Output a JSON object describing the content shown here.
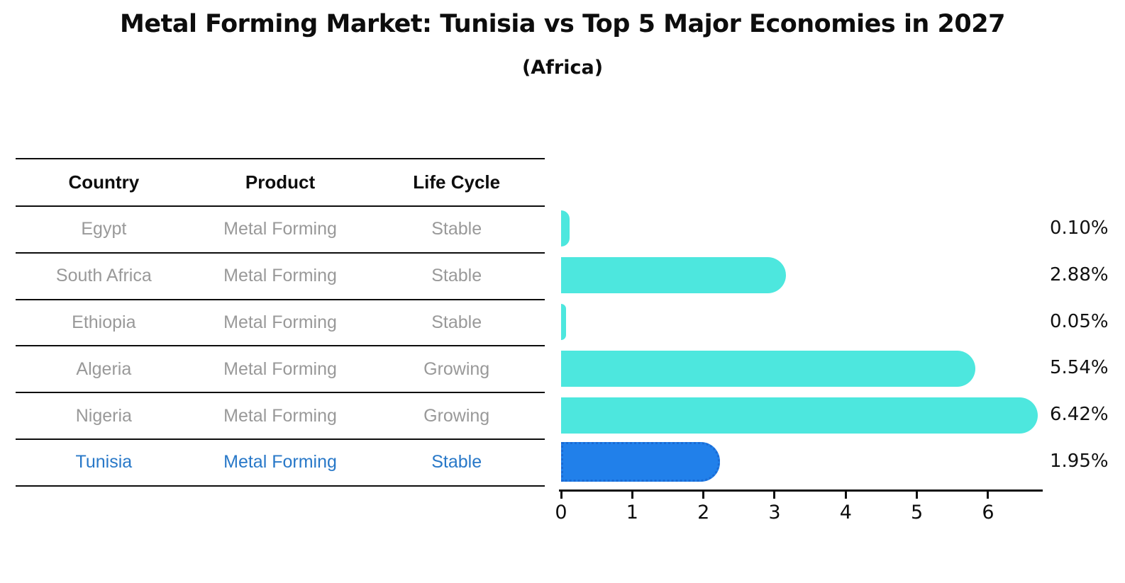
{
  "page": {
    "title": "Metal Forming Market: Tunisia vs Top 5 Major Economies in 2027",
    "subtitle": "(Africa)"
  },
  "table": {
    "headers": [
      "Country",
      "Product",
      "Life Cycle"
    ],
    "rows": [
      {
        "country": "Egypt",
        "product": "Metal Forming",
        "life_cycle": "Stable",
        "highlight": false
      },
      {
        "country": "South Africa",
        "product": "Metal Forming",
        "life_cycle": "Stable",
        "highlight": false
      },
      {
        "country": "Ethiopia",
        "product": "Metal Forming",
        "life_cycle": "Stable",
        "highlight": false
      },
      {
        "country": "Algeria",
        "product": "Metal Forming",
        "life_cycle": "Growing",
        "highlight": false
      },
      {
        "country": "Nigeria",
        "product": "Metal Forming",
        "life_cycle": "Growing",
        "highlight": false
      },
      {
        "country": "Tunisia",
        "product": "Metal Forming",
        "life_cycle": "Stable",
        "highlight": true
      }
    ]
  },
  "chart_data": {
    "type": "bar",
    "orientation": "horizontal",
    "title": "Metal Forming Market: Tunisia vs Top 5 Major Economies in 2027",
    "subtitle": "(Africa)",
    "categories": [
      "Egypt",
      "South Africa",
      "Ethiopia",
      "Algeria",
      "Nigeria",
      "Tunisia"
    ],
    "values": [
      0.1,
      2.88,
      0.05,
      5.54,
      6.42,
      1.95
    ],
    "value_labels": [
      "0.10%",
      "2.88%",
      "0.05%",
      "5.54%",
      "6.42%",
      "1.95%"
    ],
    "unit": "percent",
    "highlight_index": 5,
    "xlim": [
      0,
      6.8
    ],
    "x_ticks": [
      0,
      1,
      2,
      3,
      4,
      5,
      6
    ],
    "grid": false,
    "legend": null,
    "colors": {
      "bar": "#4DE7DE",
      "highlight_bar": "#2180EA",
      "highlight_border": "#1A6BD4",
      "axis": "#0d0d0d",
      "row_text": "#999999",
      "highlight_text": "#2878C8"
    }
  }
}
